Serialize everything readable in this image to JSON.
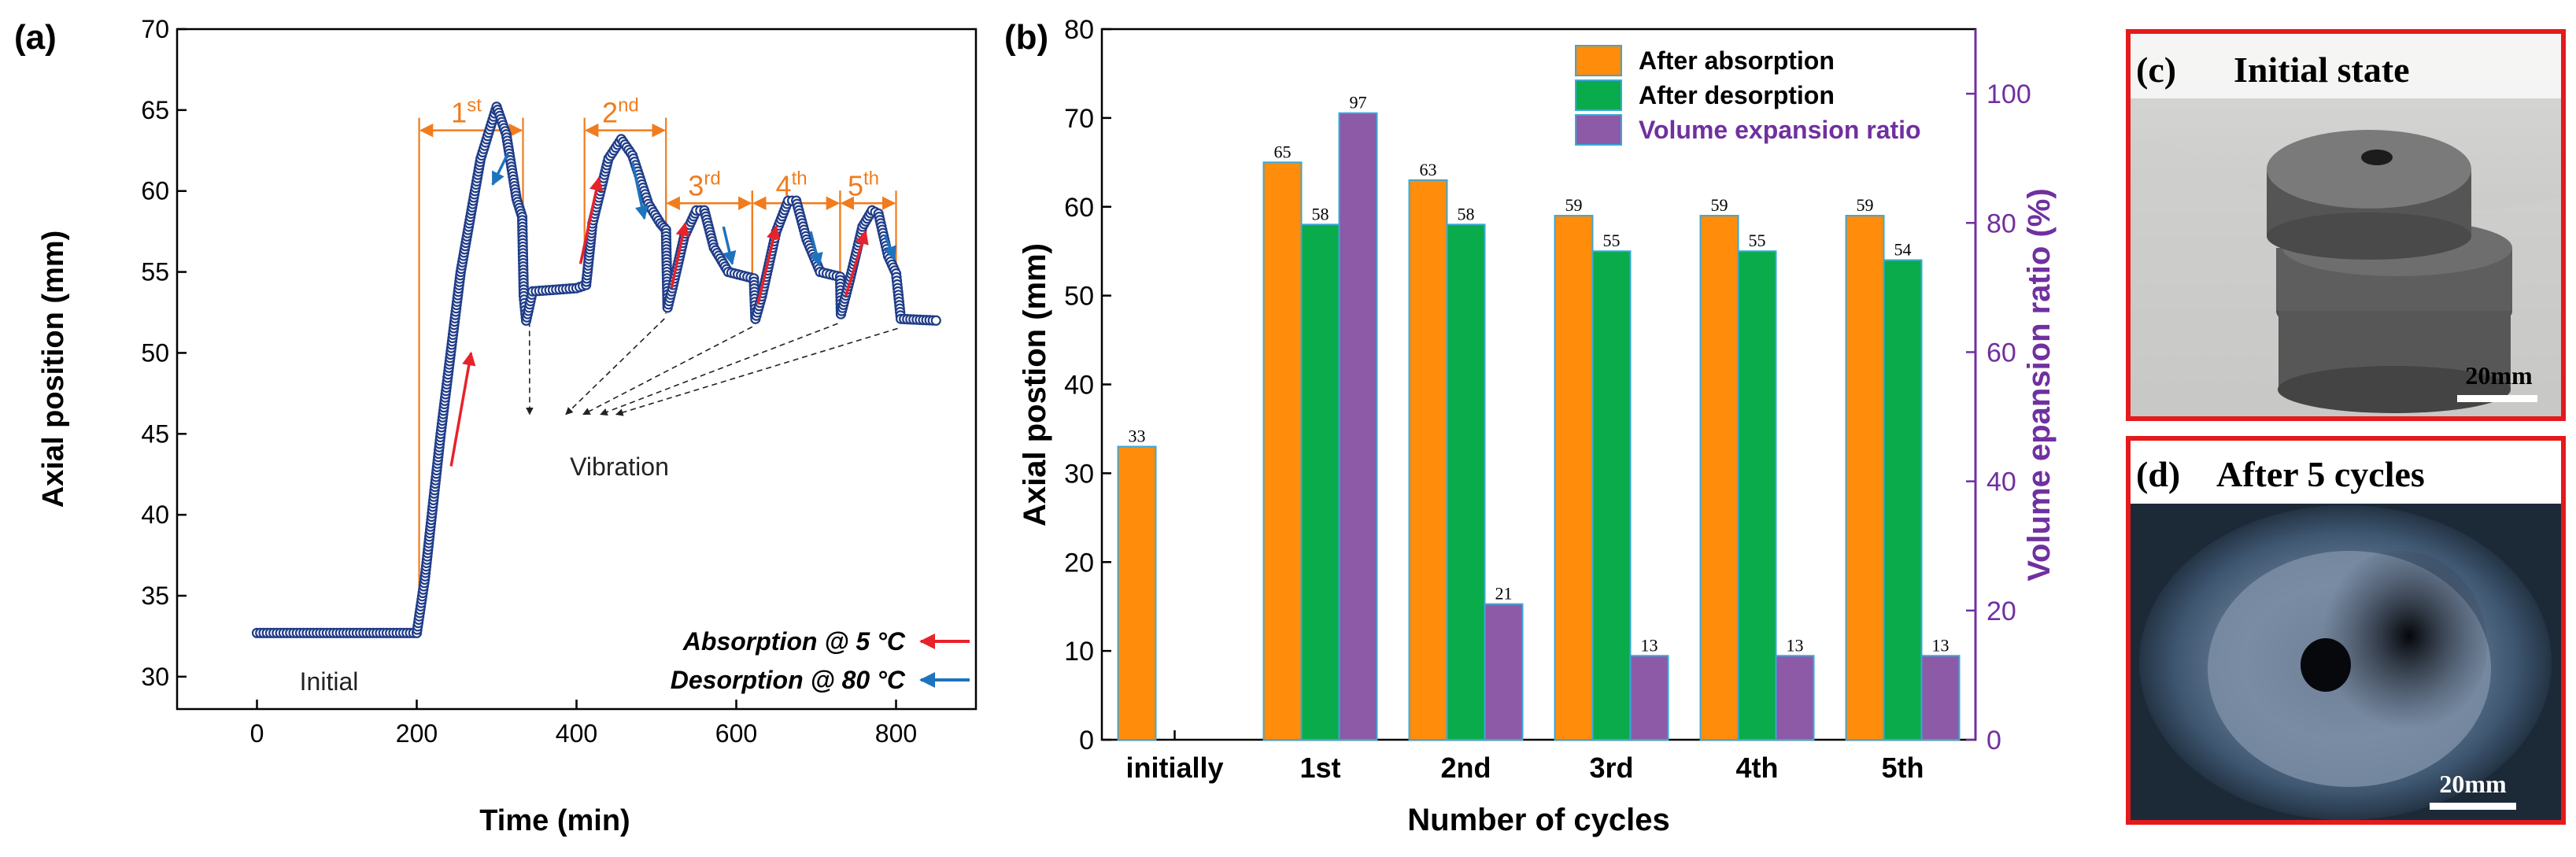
{
  "chart_data": [
    {
      "id": "a",
      "type": "scatter",
      "panel_label": "(a)",
      "xlabel": "Time (min)",
      "ylabel": "Axial position (mm)",
      "xlim": [
        -100,
        900
      ],
      "ylim": [
        28,
        70
      ],
      "xticks": [
        0,
        200,
        400,
        600,
        800
      ],
      "yticks": [
        30,
        35,
        40,
        45,
        50,
        55,
        60,
        65,
        70
      ],
      "cycle_labels": [
        {
          "base": "1",
          "sup": "st",
          "x_start": 203,
          "x_end": 333
        },
        {
          "base": "2",
          "sup": "nd",
          "x_start": 410,
          "x_end": 512
        },
        {
          "base": "3",
          "sup": "rd",
          "x_start": 512,
          "x_end": 620
        },
        {
          "base": "4",
          "sup": "th",
          "x_start": 620,
          "x_end": 730
        },
        {
          "base": "5",
          "sup": "th",
          "x_start": 730,
          "x_end": 800
        }
      ],
      "cycle_bracket_tops": [
        61.8,
        61.8,
        57.3,
        57.3,
        57.3
      ],
      "series": [
        {
          "name": "Axial position",
          "color": "#1f3c88",
          "points": [
            [
              0,
              32.7
            ],
            [
              200,
              32.7
            ],
            [
              210,
              36
            ],
            [
              230,
              45
            ],
            [
              255,
              55
            ],
            [
              280,
              62
            ],
            [
              300,
              65.2
            ],
            [
              312,
              63.5
            ],
            [
              325,
              59.5
            ],
            [
              332,
              58.4
            ],
            [
              334,
              53.5
            ],
            [
              337,
              52
            ],
            [
              345,
              53.8
            ],
            [
              400,
              54.0
            ],
            [
              412,
              54.2
            ],
            [
              420,
              58
            ],
            [
              440,
              62
            ],
            [
              456,
              63.2
            ],
            [
              470,
              62.2
            ],
            [
              490,
              59.2
            ],
            [
              505,
              58
            ],
            [
              512,
              57.6
            ],
            [
              514,
              52.8
            ],
            [
              520,
              54
            ],
            [
              535,
              57.2
            ],
            [
              550,
              58.8
            ],
            [
              560,
              58.8
            ],
            [
              572,
              56.5
            ],
            [
              590,
              55
            ],
            [
              622,
              54.6
            ],
            [
              624,
              52.1
            ],
            [
              632,
              53.5
            ],
            [
              650,
              57.5
            ],
            [
              665,
              59.4
            ],
            [
              675,
              59.4
            ],
            [
              688,
              57
            ],
            [
              705,
              55
            ],
            [
              730,
              54.7
            ],
            [
              731,
              52.4
            ],
            [
              742,
              54.5
            ],
            [
              758,
              57.8
            ],
            [
              770,
              58.8
            ],
            [
              778,
              58.6
            ],
            [
              790,
              56
            ],
            [
              800,
              54.9
            ],
            [
              802,
              54.0
            ],
            [
              806,
              52.1
            ],
            [
              850,
              52.0
            ]
          ]
        }
      ],
      "arrows_absorption": [
        [
          243,
          43,
          268,
          50
        ],
        [
          405,
          55.5,
          428,
          60.8
        ],
        [
          519,
          54,
          536,
          58
        ],
        [
          627,
          53,
          650,
          57.8
        ],
        [
          737,
          53.5,
          762,
          57.5
        ]
      ],
      "arrows_desorption": [
        [
          314,
          62.3,
          295,
          60.4
        ],
        [
          470,
          61.8,
          485,
          58.3
        ],
        [
          584,
          57.8,
          595,
          55.5
        ],
        [
          693,
          57.5,
          704,
          55.4
        ],
        [
          786,
          57.3,
          798,
          55.8
        ]
      ],
      "vibration_label": "Vibration",
      "vibration_target": [
        430,
        46.2
      ],
      "vibration_sources": [
        [
          345,
          53.5
        ],
        [
          514,
          52.5
        ],
        [
          624,
          52
        ],
        [
          731,
          52.2
        ],
        [
          806,
          51.9
        ]
      ],
      "vibration_target_offsets": [
        -90,
        -44,
        -22,
        0,
        20
      ],
      "initial_label": "Initial",
      "legend": [
        {
          "label": "Absorption @ 5 °C",
          "color": "#e8222b"
        },
        {
          "label": "Desorption @ 80 °C",
          "color": "#1e73be"
        }
      ]
    },
    {
      "id": "b",
      "type": "bar",
      "panel_label": "(b)",
      "xlabel": "Number of cycles",
      "ylabel": "Axial postion (mm)",
      "y2label": "Volume epansion ratio (%)",
      "ylim": [
        0,
        80
      ],
      "y2lim": [
        0,
        110
      ],
      "yticks": [
        0,
        10,
        20,
        30,
        40,
        50,
        60,
        70,
        80
      ],
      "y2ticks": [
        0,
        20,
        40,
        60,
        80,
        100
      ],
      "categories": [
        "initially",
        "1st",
        "2nd",
        "3rd",
        "4th",
        "5th"
      ],
      "series": [
        {
          "name": "After absorption",
          "axis": "left",
          "color": "#ff8c0a",
          "values": [
            33,
            65,
            63,
            59,
            59,
            59
          ]
        },
        {
          "name": "After desorption",
          "axis": "left",
          "color": "#0aab4b",
          "values": [
            null,
            58,
            58,
            55,
            55,
            54
          ]
        },
        {
          "name": "Volume expansion ratio",
          "axis": "right",
          "color": "#8c5aa6",
          "values": [
            null,
            97,
            21,
            13,
            13,
            13
          ]
        }
      ],
      "legend_position": "top-right"
    }
  ],
  "photo_c": {
    "label": "(c)",
    "title": "Initial state",
    "scale_bar": "20mm"
  },
  "photo_d": {
    "label": "(d)",
    "title": "After 5 cycles",
    "scale_bar": "20mm"
  }
}
